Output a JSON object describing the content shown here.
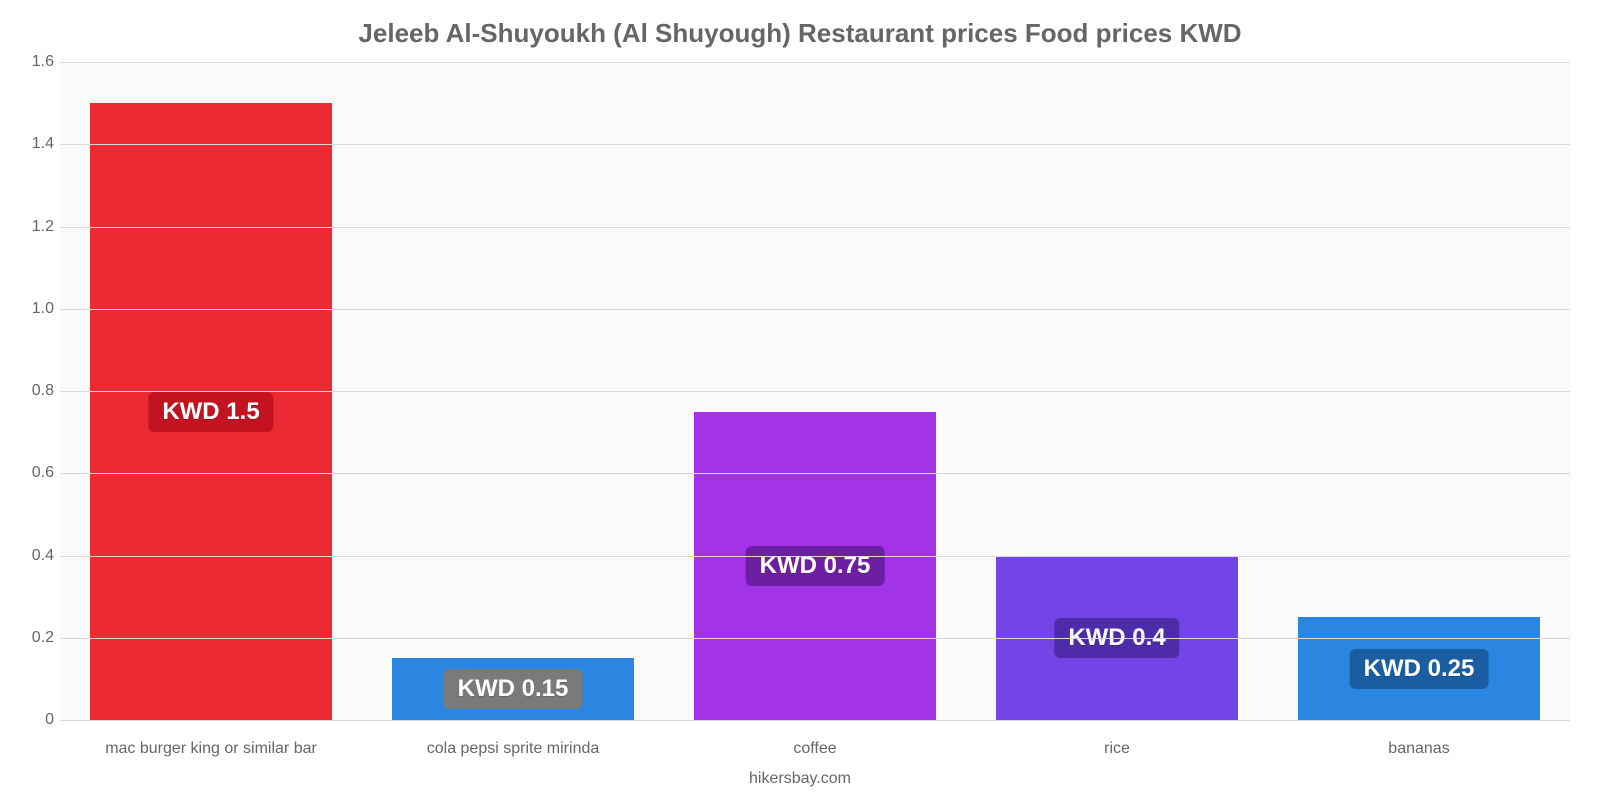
{
  "chart": {
    "type": "bar",
    "title": "Jeleeb Al-Shuyoukh (Al Shuyough) Restaurant prices Food prices KWD",
    "title_fontsize": 26,
    "title_color": "#666666",
    "footer": "hikersbay.com",
    "footer_color": "#666666",
    "background_color": "#ffffff",
    "plot_background_color": "#fafafa",
    "gridline_color": "#d9d9d9",
    "axis_label_color": "#666666",
    "axis_label_fontsize": 16,
    "ylim": [
      0,
      1.6
    ],
    "yticks": [
      0,
      0.2,
      0.4,
      0.6,
      0.8,
      1.0,
      1.2,
      1.4,
      1.6
    ],
    "ytick_labels": [
      "0",
      "0.2",
      "0.4",
      "0.6",
      "0.8",
      "1.0",
      "1.2",
      "1.4",
      "1.6"
    ],
    "bar_width_pct": 80,
    "value_label_fontsize": 24,
    "bars": [
      {
        "category": "mac burger king or similar bar",
        "value": 1.5,
        "value_label": "KWD 1.5",
        "color": "#eb2a34",
        "badge_bg": "#c41320"
      },
      {
        "category": "cola pepsi sprite mirinda",
        "value": 0.15,
        "value_label": "KWD 0.15",
        "color": "#2a86e1",
        "badge_bg": "#7a7a7a"
      },
      {
        "category": "coffee",
        "value": 0.75,
        "value_label": "KWD 0.75",
        "color": "#a333e6",
        "badge_bg": "#6d1fa3"
      },
      {
        "category": "rice",
        "value": 0.4,
        "value_label": "KWD 0.4",
        "color": "#7445e6",
        "badge_bg": "#4e2ba8"
      },
      {
        "category": "bananas",
        "value": 0.25,
        "value_label": "KWD 0.25",
        "color": "#2a86e1",
        "badge_bg": "#1a5da0"
      }
    ]
  }
}
